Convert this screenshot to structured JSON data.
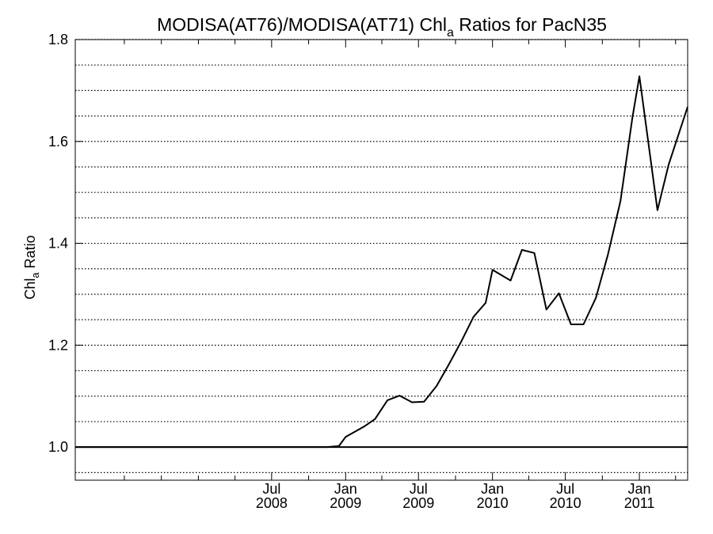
{
  "chart_data": {
    "type": "line",
    "title": {
      "main": "MODISA(AT76)/MODISA(AT71)  Chl",
      "subscript": "a",
      "suffix": " Ratios for PacN35"
    },
    "ylabel": {
      "main": "Chl",
      "subscript": "a",
      "suffix": " Ratio"
    },
    "xlabel": "",
    "xlim": [
      "2007-03-01",
      "2011-05-01"
    ],
    "ylim": [
      0.935,
      1.8
    ],
    "grid": true,
    "y_ticks": [
      {
        "value": 1.0,
        "label": "1.0"
      },
      {
        "value": 1.2,
        "label": "1.2"
      },
      {
        "value": 1.4,
        "label": "1.4"
      },
      {
        "value": 1.6,
        "label": "1.6"
      },
      {
        "value": 1.8,
        "label": "1.8"
      }
    ],
    "y_gridlines": [
      0.95,
      1.0,
      1.05,
      1.1,
      1.15,
      1.2,
      1.25,
      1.3,
      1.35,
      1.4,
      1.45,
      1.5,
      1.55,
      1.6,
      1.65,
      1.7,
      1.75,
      1.8
    ],
    "x_ticks": [
      {
        "date": "2008-07-01",
        "month": "Jul",
        "year": "2008"
      },
      {
        "date": "2009-01-01",
        "month": "Jan",
        "year": "2009"
      },
      {
        "date": "2009-07-01",
        "month": "Jul",
        "year": "2009"
      },
      {
        "date": "2010-01-01",
        "month": "Jan",
        "year": "2010"
      },
      {
        "date": "2010-07-01",
        "month": "Jul",
        "year": "2010"
      },
      {
        "date": "2011-01-01",
        "month": "Jan",
        "year": "2011"
      }
    ],
    "x_minor_ticks": [
      "2007-07-01",
      "2007-10-01",
      "2008-01-01",
      "2008-04-01",
      "2008-10-01",
      "2009-04-01",
      "2009-10-01",
      "2010-04-01",
      "2010-10-01",
      "2011-04-01"
    ],
    "reference_line": 1.0,
    "series": [
      {
        "color": "#000000",
        "points": [
          [
            "2007-03-01",
            1.0
          ],
          [
            "2008-11-15",
            1.0
          ],
          [
            "2008-12-15",
            1.002
          ],
          [
            "2009-01-01",
            1.02
          ],
          [
            "2009-02-15",
            1.04
          ],
          [
            "2009-03-15",
            1.055
          ],
          [
            "2009-04-15",
            1.092
          ],
          [
            "2009-05-15",
            1.101
          ],
          [
            "2009-06-15",
            1.088
          ],
          [
            "2009-07-15",
            1.089
          ],
          [
            "2009-08-15",
            1.12
          ],
          [
            "2009-09-15",
            1.163
          ],
          [
            "2009-10-15",
            1.207
          ],
          [
            "2009-11-15",
            1.256
          ],
          [
            "2009-12-15",
            1.283
          ],
          [
            "2010-01-01",
            1.348
          ],
          [
            "2010-02-15",
            1.327
          ],
          [
            "2010-03-15",
            1.387
          ],
          [
            "2010-04-15",
            1.381
          ],
          [
            "2010-05-15",
            1.27
          ],
          [
            "2010-06-15",
            1.302
          ],
          [
            "2010-07-15",
            1.241
          ],
          [
            "2010-08-15",
            1.241
          ],
          [
            "2010-09-15",
            1.293
          ],
          [
            "2010-10-15",
            1.378
          ],
          [
            "2010-11-15",
            1.483
          ],
          [
            "2010-12-15",
            1.648
          ],
          [
            "2011-01-01",
            1.728
          ],
          [
            "2011-02-15",
            1.465
          ],
          [
            "2011-03-15",
            1.555
          ],
          [
            "2011-05-01",
            1.668
          ]
        ]
      }
    ]
  }
}
